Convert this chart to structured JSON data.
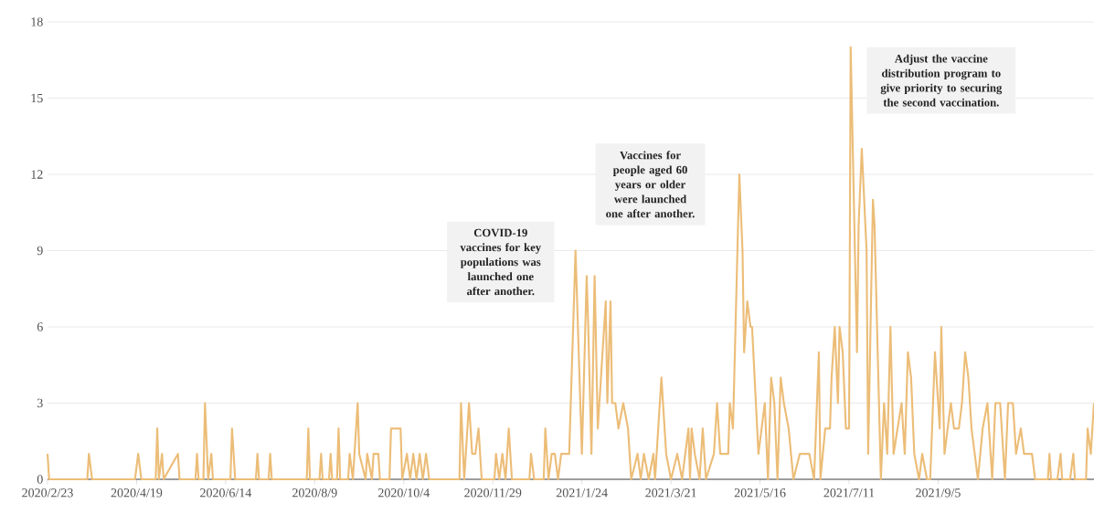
{
  "chart_data": {
    "type": "line",
    "color": "#ecbd78",
    "grid": "y",
    "marker": "none",
    "line_style": "solid",
    "xlim": [
      "2020-02-23",
      "2021-12-12"
    ],
    "ylim": [
      0,
      18
    ],
    "xticks": [
      {
        "value": "2020-02-23",
        "label": "2020/2/23"
      },
      {
        "value": "2020-04-19",
        "label": "2020/4/19"
      },
      {
        "value": "2020-06-14",
        "label": "2020/6/14"
      },
      {
        "value": "2020-08-09",
        "label": "2020/8/9"
      },
      {
        "value": "2020-10-04",
        "label": "2020/10/4"
      },
      {
        "value": "2020-11-29",
        "label": "2020/11/29"
      },
      {
        "value": "2021-01-24",
        "label": "2021/1/24"
      },
      {
        "value": "2021-03-21",
        "label": "2021/3/21"
      },
      {
        "value": "2021-05-16",
        "label": "2021/5/16"
      },
      {
        "value": "2021-07-11",
        "label": "2021/7/11"
      },
      {
        "value": "2021-09-05",
        "label": "2021/9/5"
      }
    ],
    "yticks": [
      0,
      3,
      6,
      9,
      12,
      15,
      18
    ],
    "x": [
      "2020-02-23",
      "2020-02-24",
      "2020-03-19",
      "2020-03-20",
      "2020-03-22",
      "2020-04-18",
      "2020-04-20",
      "2020-04-22",
      "2020-05-01",
      "2020-05-02",
      "2020-05-03",
      "2020-05-05",
      "2020-05-06",
      "2020-05-15",
      "2020-05-16",
      "2020-05-26",
      "2020-05-27",
      "2020-05-28",
      "2020-05-31",
      "2020-06-01",
      "2020-06-03",
      "2020-06-05",
      "2020-06-06",
      "2020-06-17",
      "2020-06-18",
      "2020-06-20",
      "2020-07-03",
      "2020-07-04",
      "2020-07-05",
      "2020-07-11",
      "2020-07-12",
      "2020-07-13",
      "2020-08-04",
      "2020-08-05",
      "2020-08-06",
      "2020-08-12",
      "2020-08-13",
      "2020-08-14",
      "2020-08-18",
      "2020-08-19",
      "2020-08-20",
      "2020-08-23",
      "2020-08-24",
      "2020-08-25",
      "2020-08-30",
      "2020-08-31",
      "2020-09-02",
      "2020-09-05",
      "2020-09-06",
      "2020-09-10",
      "2020-09-11",
      "2020-09-14",
      "2020-09-15",
      "2020-09-18",
      "2020-09-19",
      "2020-09-25",
      "2020-09-26",
      "2020-09-29",
      "2020-10-02",
      "2020-10-03",
      "2020-10-06",
      "2020-10-08",
      "2020-10-10",
      "2020-10-12",
      "2020-10-14",
      "2020-10-16",
      "2020-10-18",
      "2020-10-20",
      "2020-11-08",
      "2020-11-09",
      "2020-11-11",
      "2020-11-14",
      "2020-11-16",
      "2020-11-18",
      "2020-11-20",
      "2020-11-22",
      "2020-11-30",
      "2020-12-01",
      "2020-12-03",
      "2020-12-05",
      "2020-12-07",
      "2020-12-09",
      "2020-12-11",
      "2020-12-22",
      "2020-12-23",
      "2020-12-25",
      "2020-12-31",
      "2021-01-01",
      "2021-01-03",
      "2021-01-05",
      "2021-01-07",
      "2021-01-09",
      "2021-01-11",
      "2021-01-13",
      "2021-01-15",
      "2021-01-16",
      "2021-01-20",
      "2021-01-24",
      "2021-01-27",
      "2021-01-28",
      "2021-01-30",
      "2021-02-01",
      "2021-02-03",
      "2021-02-05",
      "2021-02-08",
      "2021-02-09",
      "2021-02-11",
      "2021-02-12",
      "2021-02-14",
      "2021-02-16",
      "2021-02-19",
      "2021-02-22",
      "2021-02-24",
      "2021-02-28",
      "2021-03-02",
      "2021-03-04",
      "2021-03-07",
      "2021-03-10",
      "2021-03-11",
      "2021-03-15",
      "2021-03-18",
      "2021-03-21",
      "2021-03-25",
      "2021-03-28",
      "2021-04-01",
      "2021-04-02",
      "2021-04-03",
      "2021-04-05",
      "2021-04-08",
      "2021-04-10",
      "2021-04-12",
      "2021-04-17",
      "2021-04-19",
      "2021-04-21",
      "2021-04-26",
      "2021-04-27",
      "2021-04-29",
      "2021-05-03",
      "2021-05-05",
      "2021-05-06",
      "2021-05-08",
      "2021-05-10",
      "2021-05-11",
      "2021-05-15",
      "2021-05-17",
      "2021-05-19",
      "2021-05-21",
      "2021-05-23",
      "2021-05-25",
      "2021-05-27",
      "2021-05-29",
      "2021-05-31",
      "2021-06-03",
      "2021-06-06",
      "2021-06-10",
      "2021-06-16",
      "2021-06-19",
      "2021-06-22",
      "2021-06-23",
      "2021-06-26",
      "2021-06-29",
      "2021-06-30",
      "2021-07-02",
      "2021-07-04",
      "2021-07-05",
      "2021-07-07",
      "2021-07-09",
      "2021-07-11",
      "2021-07-12",
      "2021-07-16",
      "2021-07-17",
      "2021-07-19",
      "2021-07-22",
      "2021-07-23",
      "2021-07-26",
      "2021-07-27",
      "2021-07-29",
      "2021-07-31",
      "2021-08-02",
      "2021-08-04",
      "2021-08-06",
      "2021-08-08",
      "2021-08-13",
      "2021-08-15",
      "2021-08-17",
      "2021-08-19",
      "2021-08-21",
      "2021-08-24",
      "2021-08-26",
      "2021-08-29",
      "2021-08-31",
      "2021-09-03",
      "2021-09-06",
      "2021-09-07",
      "2021-09-09",
      "2021-09-13",
      "2021-09-15",
      "2021-09-18",
      "2021-09-20",
      "2021-09-22",
      "2021-09-24",
      "2021-09-26",
      "2021-09-30",
      "2021-10-03",
      "2021-10-06",
      "2021-10-09",
      "2021-10-11",
      "2021-10-14",
      "2021-10-17",
      "2021-10-19",
      "2021-10-22",
      "2021-10-24",
      "2021-10-27",
      "2021-10-29",
      "2021-11-03",
      "2021-11-05",
      "2021-11-13",
      "2021-11-14",
      "2021-11-15",
      "2021-11-19",
      "2021-11-21",
      "2021-11-22",
      "2021-11-27",
      "2021-11-29",
      "2021-11-30",
      "2021-12-07",
      "2021-12-08",
      "2021-12-10",
      "2021-12-12"
    ],
    "values": [
      1,
      0,
      0,
      1,
      0,
      0,
      1,
      0,
      0,
      2,
      0,
      1,
      0,
      1,
      0,
      0,
      1,
      0,
      0,
      3,
      0,
      1,
      0,
      0,
      2,
      0,
      0,
      1,
      0,
      0,
      1,
      0,
      0,
      2,
      0,
      0,
      1,
      0,
      0,
      1,
      0,
      0,
      2,
      0,
      0,
      1,
      0,
      3,
      1,
      0,
      1,
      0,
      1,
      1,
      0,
      0,
      2,
      2,
      2,
      0,
      1,
      0,
      1,
      0,
      1,
      0,
      1,
      0,
      0,
      3,
      0,
      3,
      1,
      1,
      2,
      0,
      0,
      1,
      0,
      1,
      0,
      2,
      0,
      0,
      1,
      0,
      0,
      2,
      0,
      1,
      1,
      0,
      1,
      1,
      1,
      1,
      9,
      1,
      8,
      6,
      1,
      8,
      2,
      4,
      7,
      3,
      7,
      3,
      3,
      2,
      3,
      2,
      0,
      1,
      0,
      1,
      0,
      1,
      0,
      4,
      1,
      0,
      1,
      0,
      2,
      0,
      2,
      1,
      0,
      2,
      0,
      1,
      3,
      1,
      1,
      3,
      2,
      12,
      9,
      5,
      7,
      6,
      6,
      1,
      2,
      3,
      0,
      4,
      3,
      0,
      4,
      3,
      2,
      0,
      1,
      1,
      0,
      5,
      0,
      2,
      2,
      4,
      6,
      3,
      6,
      5,
      2,
      2,
      17,
      5,
      10,
      13,
      9,
      1,
      11,
      10,
      5,
      0,
      3,
      1,
      6,
      1,
      3,
      1,
      5,
      4,
      1,
      0,
      1,
      0,
      0,
      5,
      2,
      6,
      1,
      3,
      2,
      2,
      3,
      5,
      4,
      2,
      0,
      2,
      3,
      0,
      3,
      3,
      0,
      3,
      3,
      1,
      2,
      1,
      1,
      0,
      0,
      1,
      0,
      0,
      1,
      0,
      0,
      1,
      0,
      0,
      2,
      1,
      3
    ],
    "annotations": [
      "COVID-19 vaccines for key populations was launched one after another.",
      "Vaccines for people aged 60 years or older were launched one after another.",
      "Adjust the vaccine distribution program to give priority to securing the second vaccination."
    ]
  }
}
